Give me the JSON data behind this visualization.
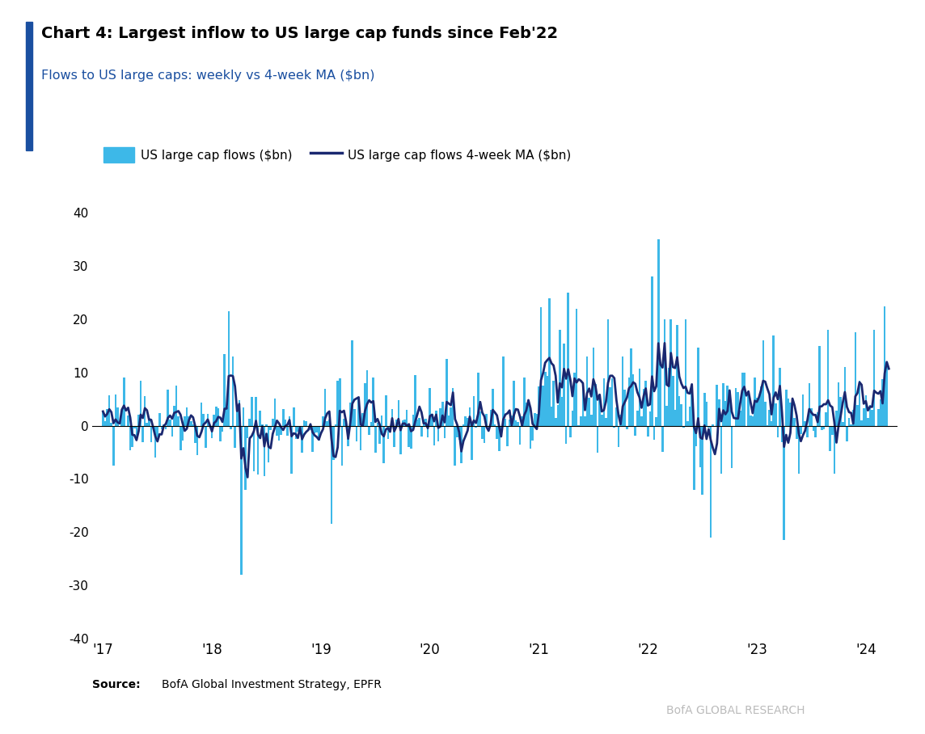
{
  "title": "Chart 4: Largest inflow to US large cap funds since Feb'22",
  "subtitle": "Flows to US large caps: weekly vs 4-week MA ($bn)",
  "source_bold": "Source:",
  "source_text": " BofA Global Investment Strategy, EPFR",
  "watermark": "BofA GLOBAL RESEARCH",
  "bar_color": "#3DB8E8",
  "line_color": "#1A2870",
  "bar_alpha": 1.0,
  "line_width": 2.0,
  "accent_color": "#1A4FA0",
  "ylim": [
    -40,
    40
  ],
  "yticks": [
    -40,
    -30,
    -20,
    -10,
    0,
    10,
    20,
    30,
    40
  ],
  "xlabel_years": [
    "'17",
    "'18",
    "'19",
    "'20",
    "'21",
    "'22",
    "'23",
    "'24"
  ],
  "background_color": "#FFFFFF"
}
